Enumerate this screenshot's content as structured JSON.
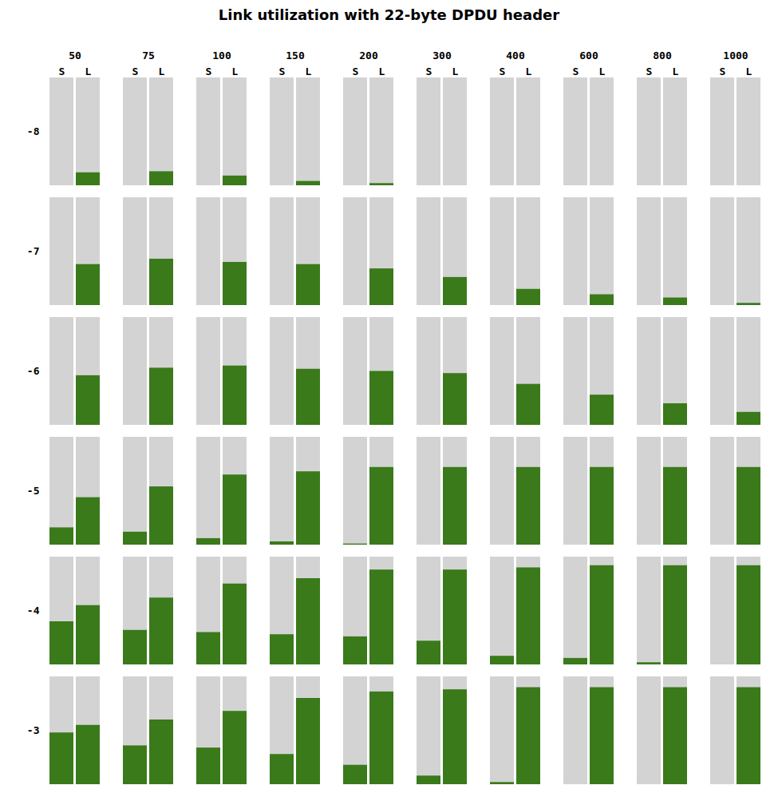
{
  "chart_data": {
    "type": "bar",
    "title": "Link utilization with 22-byte DPDU header",
    "categories": [
      "50",
      "75",
      "100",
      "150",
      "200",
      "300",
      "400",
      "600",
      "800",
      "1000"
    ],
    "rows": [
      {
        "name": "-8",
        "series": [
          {
            "name": "S",
            "values": [
              0.0,
              0.0,
              0.0,
              0.0,
              0.0,
              0.0,
              0.0,
              0.0,
              0.0,
              0.0
            ]
          },
          {
            "name": "L",
            "values": [
              0.12,
              0.13,
              0.09,
              0.04,
              0.02,
              0.0,
              0.0,
              0.0,
              0.0,
              0.0
            ]
          }
        ]
      },
      {
        "name": "-7",
        "series": [
          {
            "name": "S",
            "values": [
              0.0,
              0.0,
              0.0,
              0.0,
              0.0,
              0.0,
              0.0,
              0.0,
              0.0,
              0.0
            ]
          },
          {
            "name": "L",
            "values": [
              0.38,
              0.43,
              0.4,
              0.38,
              0.34,
              0.26,
              0.15,
              0.1,
              0.07,
              0.02
            ]
          }
        ]
      },
      {
        "name": "-6",
        "series": [
          {
            "name": "S",
            "values": [
              0.0,
              0.0,
              0.0,
              0.0,
              0.0,
              0.0,
              0.0,
              0.0,
              0.0,
              0.0
            ]
          },
          {
            "name": "L",
            "values": [
              0.46,
              0.53,
              0.55,
              0.52,
              0.5,
              0.48,
              0.38,
              0.28,
              0.2,
              0.12
            ]
          }
        ]
      },
      {
        "name": "-5",
        "series": [
          {
            "name": "S",
            "values": [
              0.16,
              0.12,
              0.06,
              0.03,
              0.01,
              0.0,
              0.0,
              0.0,
              0.0,
              0.0
            ]
          },
          {
            "name": "L",
            "values": [
              0.44,
              0.54,
              0.65,
              0.68,
              0.72,
              0.72,
              0.72,
              0.72,
              0.72,
              0.72
            ]
          }
        ]
      },
      {
        "name": "-4",
        "series": [
          {
            "name": "S",
            "values": [
              0.4,
              0.32,
              0.3,
              0.28,
              0.26,
              0.22,
              0.08,
              0.06,
              0.02,
              0.0
            ]
          },
          {
            "name": "L",
            "values": [
              0.55,
              0.62,
              0.75,
              0.8,
              0.88,
              0.88,
              0.9,
              0.92,
              0.92,
              0.92
            ]
          }
        ]
      },
      {
        "name": "-3",
        "series": [
          {
            "name": "S",
            "values": [
              0.48,
              0.36,
              0.34,
              0.28,
              0.18,
              0.08,
              0.02,
              0.0,
              0.0,
              0.0
            ]
          },
          {
            "name": "L",
            "values": [
              0.55,
              0.6,
              0.68,
              0.8,
              0.86,
              0.88,
              0.9,
              0.9,
              0.9,
              0.9
            ]
          }
        ]
      }
    ],
    "color": "#3a7a1a",
    "ylim": [
      0,
      1
    ],
    "tick_labels": "x",
    "grid": false
  }
}
